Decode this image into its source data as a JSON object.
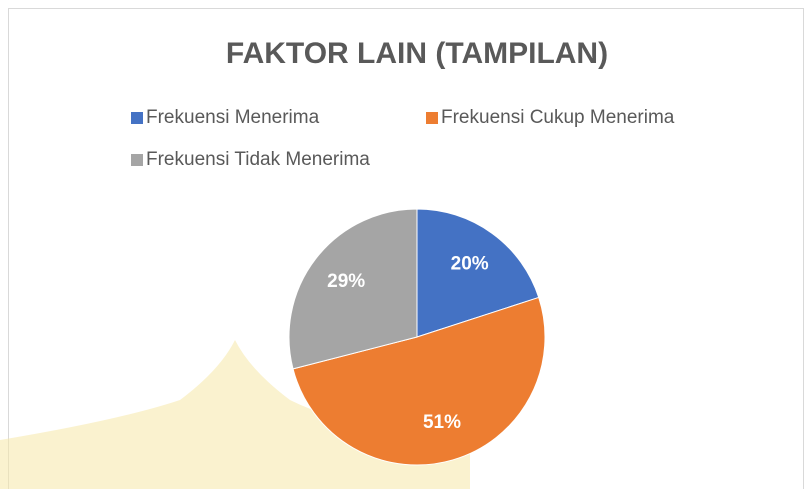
{
  "chart_data": {
    "type": "pie",
    "title": "FAKTOR LAIN (TAMPILAN)",
    "categories": [
      "Frekuensi Menerima",
      "Frekuensi Cukup Menerima",
      "Frekuensi Tidak Menerima"
    ],
    "values": [
      20,
      51,
      29
    ],
    "value_labels": [
      "20%",
      "51%",
      "29%"
    ],
    "colors": [
      "#4472c4",
      "#ed7d31",
      "#a5a5a5"
    ],
    "legend": "top"
  }
}
